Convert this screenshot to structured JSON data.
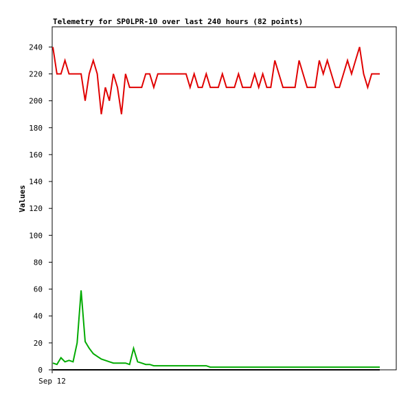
{
  "chart_data": {
    "type": "line",
    "title": "Telemetry for SP0LPR-10 over last 240 hours (82 points)",
    "xlabel": "",
    "ylabel": "Values",
    "x_tick_labels": [
      "Sep 12"
    ],
    "ylim": [
      0,
      255
    ],
    "y_ticks": [
      0,
      20,
      40,
      60,
      80,
      100,
      120,
      140,
      160,
      180,
      200,
      220,
      240
    ],
    "grid": false,
    "legend": "none",
    "series": [
      {
        "color": "#e00000",
        "values": [
          240,
          220,
          220,
          230,
          220,
          220,
          220,
          220,
          200,
          220,
          230,
          220,
          190,
          210,
          200,
          220,
          210,
          190,
          220,
          210,
          210,
          210,
          210,
          220,
          220,
          210,
          220,
          220,
          220,
          220,
          220,
          220,
          220,
          220,
          210,
          220,
          210,
          210,
          220,
          210,
          210,
          210,
          220,
          210,
          210,
          210,
          220,
          210,
          210,
          210,
          220,
          210,
          220,
          210,
          210,
          230,
          220,
          210,
          210,
          210,
          210,
          230,
          220,
          210,
          210,
          210,
          230,
          220,
          230,
          220,
          210,
          210,
          220,
          230,
          220,
          230,
          240,
          220,
          210,
          220,
          220,
          220
        ]
      },
      {
        "color": "#00aa00",
        "values": [
          5,
          4,
          9,
          6,
          7,
          6,
          20,
          59,
          21,
          16,
          12,
          10,
          8,
          7,
          6,
          5,
          5,
          5,
          5,
          4,
          16,
          6,
          5,
          4,
          4,
          3,
          3,
          3,
          3,
          3,
          3,
          3,
          3,
          3,
          3,
          3,
          3,
          3,
          3,
          2,
          2,
          2,
          2,
          2,
          2,
          2,
          2,
          2,
          2,
          2,
          2,
          2,
          2,
          2,
          2,
          2,
          2,
          2,
          2,
          2,
          2,
          2,
          2,
          2,
          2,
          2,
          2,
          2,
          2,
          2,
          2,
          2,
          2,
          2,
          2,
          2,
          2,
          2,
          2,
          2,
          2,
          2
        ]
      },
      {
        "color": "#000000",
        "values": [
          0,
          0,
          0,
          0,
          0,
          0,
          0,
          0,
          0,
          0,
          0,
          0,
          0,
          0,
          0,
          0,
          0,
          0,
          0,
          0,
          0,
          0,
          0,
          0,
          0,
          0,
          0,
          0,
          0,
          0,
          0,
          0,
          0,
          0,
          0,
          0,
          0,
          0,
          0,
          0,
          0,
          0,
          0,
          0,
          0,
          0,
          0,
          0,
          0,
          0,
          0,
          0,
          0,
          0,
          0,
          0,
          0,
          0,
          0,
          0,
          0,
          0,
          0,
          0,
          0,
          0,
          0,
          0,
          0,
          0,
          0,
          0,
          0,
          0,
          0,
          0,
          0,
          0,
          0,
          0,
          0,
          0
        ]
      }
    ]
  }
}
